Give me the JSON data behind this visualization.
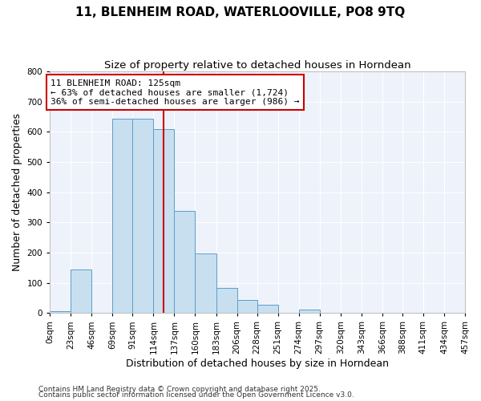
{
  "title": "11, BLENHEIM ROAD, WATERLOOVILLE, PO8 9TQ",
  "subtitle": "Size of property relative to detached houses in Horndean",
  "xlabel": "Distribution of detached houses by size in Horndean",
  "ylabel": "Number of detached properties",
  "bin_edges": [
    0,
    23,
    46,
    69,
    91,
    114,
    137,
    160,
    183,
    206,
    228,
    251,
    274,
    297,
    320,
    343,
    366,
    388,
    411,
    434,
    457
  ],
  "bin_labels": [
    "0sqm",
    "23sqm",
    "46sqm",
    "69sqm",
    "91sqm",
    "114sqm",
    "137sqm",
    "160sqm",
    "183sqm",
    "206sqm",
    "228sqm",
    "251sqm",
    "274sqm",
    "297sqm",
    "320sqm",
    "343sqm",
    "366sqm",
    "388sqm",
    "411sqm",
    "434sqm",
    "457sqm"
  ],
  "counts": [
    5,
    145,
    0,
    645,
    645,
    610,
    338,
    198,
    82,
    42,
    27,
    0,
    11,
    2,
    0,
    0,
    0,
    0,
    0,
    0
  ],
  "bar_color": "#c8dff0",
  "bar_edge_color": "#5a9ec9",
  "vline_x": 125,
  "vline_color": "#cc0000",
  "annotation_text": "11 BLENHEIM ROAD: 125sqm\n← 63% of detached houses are smaller (1,724)\n36% of semi-detached houses are larger (986) →",
  "annotation_box_color": "white",
  "annotation_box_edge_color": "#cc0000",
  "ylim": [
    0,
    800
  ],
  "yticks": [
    0,
    100,
    200,
    300,
    400,
    500,
    600,
    700,
    800
  ],
  "footnote1": "Contains HM Land Registry data © Crown copyright and database right 2025.",
  "footnote2": "Contains public sector information licensed under the Open Government Licence v3.0.",
  "background_color": "#ffffff",
  "plot_bg_color": "#eef2fa",
  "title_fontsize": 11,
  "subtitle_fontsize": 9.5,
  "label_fontsize": 9,
  "tick_fontsize": 7.5,
  "annotation_fontsize": 8,
  "footnote_fontsize": 6.5
}
